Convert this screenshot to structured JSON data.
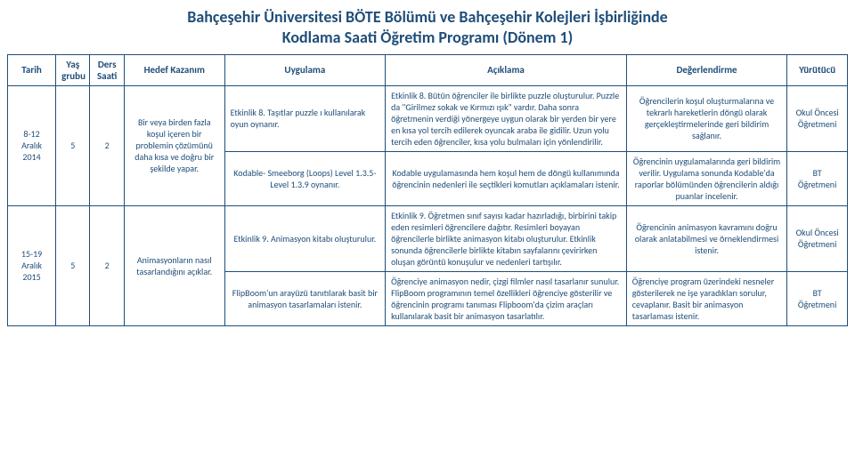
{
  "title_line1": "Bahçeşehir Üniversitesi BÖTE Bölümü ve Bahçeşehir Kolejleri İşbirliğinde",
  "title_line2": "Kodlama Saati Öğretim Programı (Dönem 1)",
  "headers": {
    "tarih": "Tarih",
    "yas": "Yaş grubu",
    "ders": "Ders Saati",
    "kazanim": "Hedef Kazanım",
    "uygulama": "Uygulama",
    "aciklama": "Açıklama",
    "degerlendirme": "Değerlendirme",
    "yurutucu": "Yürütücü"
  },
  "rows": [
    {
      "tarih": "8-12 Aralık 2014",
      "yas": "5",
      "ders": "2",
      "kazanim": "Bir veya birden fazla koşul içeren bir problemin çözümünü daha kısa ve doğru bir şekilde yapar.",
      "uygulama_a": "Etkinlik 8. Taşıtlar puzzle ı kullanılarak oyun oynanır.",
      "aciklama_a": "Etkinlik 8. Bütün öğrenciler ile birlikte puzzle oluşturulur. Puzzle da \"Girilmez sokak ve Kırmızı ışık\" vardır. Daha sonra öğretmenin verdiği yönergeye uygun olarak bir yerden bir yere en kısa yol tercih edilerek oyuncak araba ile gidilir. Uzun yolu tercih eden öğrenciler, kısa yolu bulmaları için yönlendirilir.",
      "degerlendirme_a": "Öğrencilerin koşul oluşturmalarına ve tekrarlı hareketlerin döngü olarak gerçekleştirmelerinde geri bildirim sağlanır.",
      "yurutucu_a": "Okul Öncesi Öğretmeni",
      "uygulama_b": "Kodable- Smeeborg (Loops) Level 1.3.5-Level 1.3.9 oynanır.",
      "aciklama_b": "Kodable uygulamasında hem koşul hem de döngü kullanımında öğrencinin nedenleri ile seçtikleri komutları açıklamaları istenir.",
      "degerlendirme_b": "Öğrencinin uygulamalarında geri bildirim verilir. Uygulama sonunda Kodable'da raporlar bölümünden öğrencilerin aldığı puanlar incelenir.",
      "yurutucu_b": "BT Öğretmeni"
    },
    {
      "tarih": "15-19 Aralık 2015",
      "yas": "5",
      "ders": "2",
      "kazanim": "Animasyonların nasıl tasarlandığını açıklar.",
      "uygulama_a": "Etkinlik 9. Animasyon kitabı oluşturulur.",
      "aciklama_a": "Etkinlik 9. Öğretmen sınıf sayısı kadar hazırladığı, birbirini takip eden resimleri öğrencilere dağıtır. Resimleri boyayan öğrencilerle birlikte animasyon kitabı oluşturulur. Etkinlik sonunda öğrencilerle birlikte kitabın sayfalarını çevirirken oluşan görüntü konuşulur ve nedenleri tartışılır.",
      "degerlendirme_a": "Öğrencinin animasyon kavramını doğru olarak anlatabilmesi ve örneklendirmesi istenir.",
      "yurutucu_a": "Okul Öncesi Öğretmeni",
      "uygulama_b": "FlipBoom'un arayüzü tanıtılarak basit bir animasyon tasarlamaları istenir.",
      "aciklama_b": "Öğrenciye animasyon nedir, çizgi filmler nasıl tasarlanır sunulur. FlipBoom programının temel özellikleri öğrenciye gösterilir ve öğrencinin programı tanıması Flipboom'da çizim araçları kullanılarak basit bir animasyon tasarlatılır.",
      "degerlendirme_b": "Öğrenciye program üzerindeki nesneler gösterilerek ne işe yaradıkları sorulur, cevaplanır. Basit bir animasyon tasarlaması istenir.",
      "yurutucu_b": "BT Öğretmeni"
    }
  ],
  "colors": {
    "text": "#1f4e79",
    "border": "#1f4e79",
    "background": "#ffffff"
  },
  "fonts": {
    "title_size_pt": 18,
    "header_size_pt": 11,
    "cell_size_pt": 10,
    "family": "Calibri"
  }
}
